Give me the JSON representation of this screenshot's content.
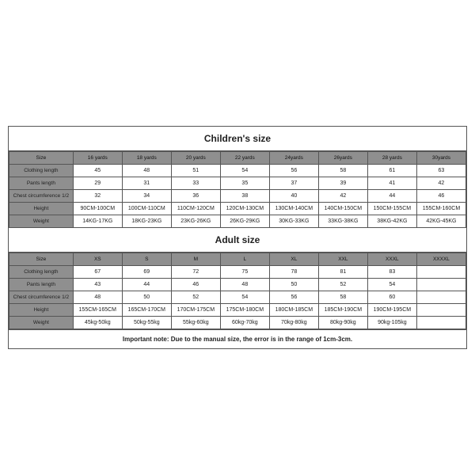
{
  "children": {
    "title": "Children's size",
    "headers": [
      "Size",
      "16 yards",
      "18 yards",
      "20 yards",
      "22 yards",
      "24yards",
      "26yards",
      "28 yards",
      "30yards"
    ],
    "rows": [
      {
        "label": "Clothing length",
        "cells": [
          "45",
          "48",
          "51",
          "54",
          "56",
          "58",
          "61",
          "63"
        ]
      },
      {
        "label": "Pants length",
        "cells": [
          "29",
          "31",
          "33",
          "35",
          "37",
          "39",
          "41",
          "42"
        ]
      },
      {
        "label": "Chest circumference 1/2",
        "cells": [
          "32",
          "34",
          "36",
          "38",
          "40",
          "42",
          "44",
          "46"
        ]
      },
      {
        "label": "Height",
        "cells": [
          "90CM-100CM",
          "100CM-110CM",
          "110CM-120CM",
          "120CM-130CM",
          "130CM-140CM",
          "140CM-150CM",
          "150CM-155CM",
          "155CM-160CM"
        ]
      },
      {
        "label": "Weight",
        "cells": [
          "14KG-17KG",
          "18KG-23KG",
          "23KG-26KG",
          "26KG-29KG",
          "30KG-33KG",
          "33KG-38KG",
          "38KG-42KG",
          "42KG-45KG"
        ]
      }
    ]
  },
  "adult": {
    "title": "Adult size",
    "headers": [
      "Size",
      "XS",
      "S",
      "M",
      "L",
      "XL",
      "XXL",
      "XXXL",
      "XXXXL"
    ],
    "rows": [
      {
        "label": "Clothing length",
        "cells": [
          "67",
          "69",
          "72",
          "75",
          "78",
          "81",
          "83",
          ""
        ]
      },
      {
        "label": "Pants length",
        "cells": [
          "43",
          "44",
          "46",
          "48",
          "50",
          "52",
          "54",
          ""
        ]
      },
      {
        "label": "Chest circumference 1/2",
        "cells": [
          "48",
          "50",
          "52",
          "54",
          "56",
          "58",
          "60",
          ""
        ]
      },
      {
        "label": "Height",
        "cells": [
          "155CM-165CM",
          "165CM-170CM",
          "170CM-175CM",
          "175CM-180CM",
          "180CM-185CM",
          "185CM-190CM",
          "190CM-195CM",
          ""
        ]
      },
      {
        "label": "Weight",
        "cells": [
          "45kg-50kg",
          "50kg-55kg",
          "55kg-60kg",
          "60kg-70kg",
          "70kg-80kg",
          "80kg-90kg",
          "90kg-105kg",
          ""
        ]
      }
    ]
  },
  "note": "Important note: Due to the manual size, the error is in the range of 1cm-3cm.",
  "style": {
    "header_bg": "#8f8f8f",
    "border_color": "#555555",
    "text_color": "#222222",
    "title_fontsize_pt": 12,
    "cell_fontsize_pt": 7,
    "background": "#ffffff"
  }
}
